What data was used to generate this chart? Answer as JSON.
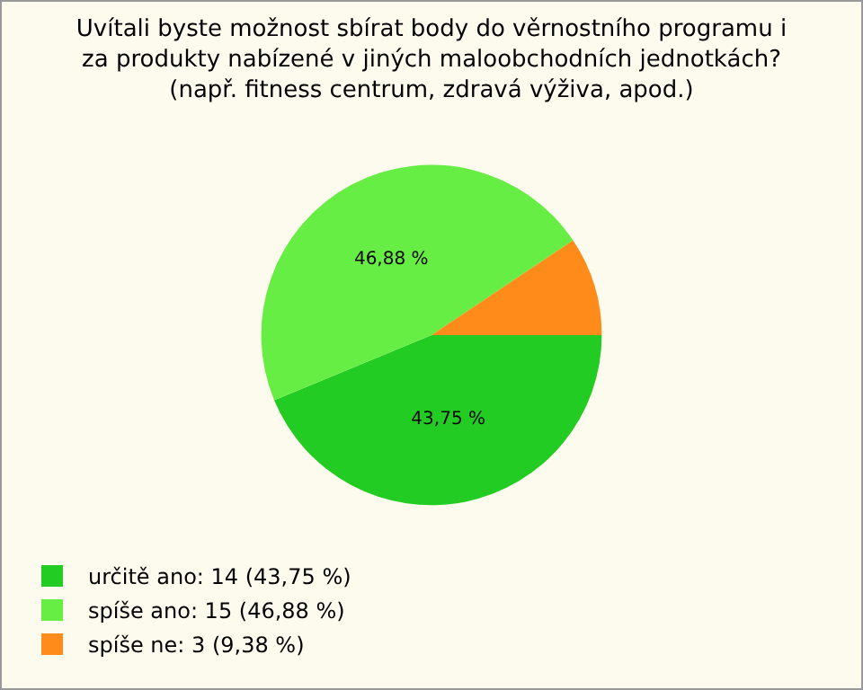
{
  "chart_data": {
    "type": "pie",
    "title": "Uvítali byste možnost sbírat body do věrnostního programu i za produkty nabízené v jiných maloobchodních jednotkách? (např. fitness centrum, zdravá výživa, apod.)",
    "categories": [
      "určitě ano: 14 (43,75 %)",
      "spíše ano: 15 (46,88 %)",
      "spíše ne: 3 (9,38 %)"
    ],
    "values": [
      43.75,
      46.88,
      9.38
    ],
    "colors": [
      "#22cc22",
      "#66ee44",
      "#ff8c1a"
    ],
    "value_labels": [
      "43,75 %",
      "46,88 %",
      null
    ],
    "legend": "bottom left"
  }
}
